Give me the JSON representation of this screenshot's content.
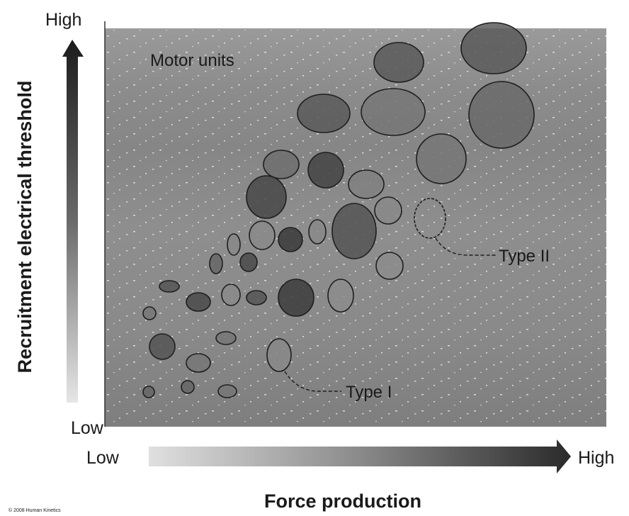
{
  "y_axis": {
    "label": "Recruitment electrical threshold",
    "high": "High",
    "low": "Low"
  },
  "x_axis": {
    "label": "Force production",
    "low": "Low",
    "high": "High"
  },
  "annotations": {
    "motor_units": "Motor units",
    "type_ii": "Type II",
    "type_i": "Type I"
  },
  "footer": {
    "copyright": "© 2008 Human Kinetics"
  }
}
